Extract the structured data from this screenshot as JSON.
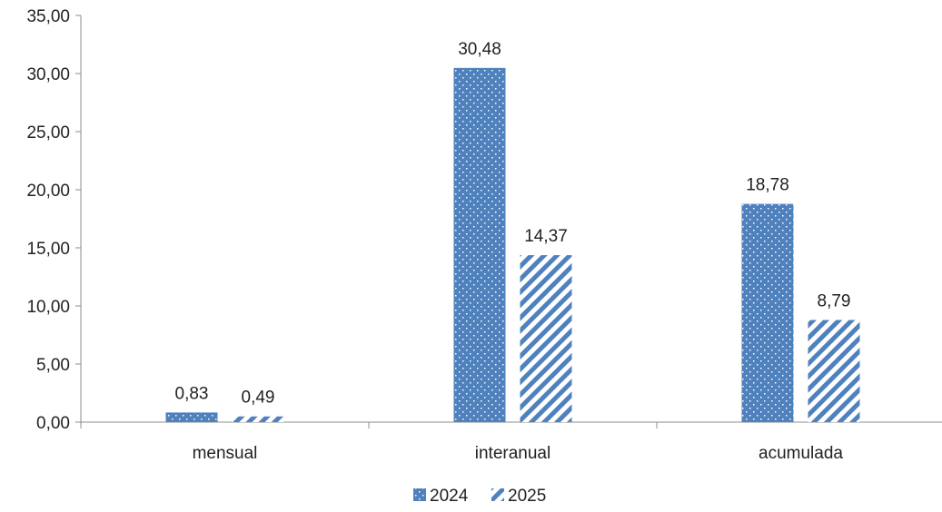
{
  "chart_data": {
    "type": "bar",
    "title": "",
    "xlabel": "",
    "ylabel": "",
    "ylim": [
      0,
      35
    ],
    "y_ticks": [
      "0,00",
      "5,00",
      "10,00",
      "15,00",
      "20,00",
      "25,00",
      "30,00",
      "35,00"
    ],
    "y_tick_values": [
      0,
      5,
      10,
      15,
      20,
      25,
      30,
      35
    ],
    "categories": [
      "mensual",
      "interanual",
      "acumulada"
    ],
    "series": [
      {
        "name": "2024",
        "values": [
          0.83,
          30.48,
          18.78
        ],
        "labels": [
          "0,83",
          "30,48",
          "18,78"
        ],
        "color": "#4f81bd",
        "pattern": "dotted"
      },
      {
        "name": "2025",
        "values": [
          0.49,
          14.37,
          8.79
        ],
        "labels": [
          "0,49",
          "14,37",
          "8,79"
        ],
        "color": "#4f81bd",
        "pattern": "diagonal-stripes"
      }
    ],
    "grid": false,
    "legend_position": "bottom-center"
  }
}
